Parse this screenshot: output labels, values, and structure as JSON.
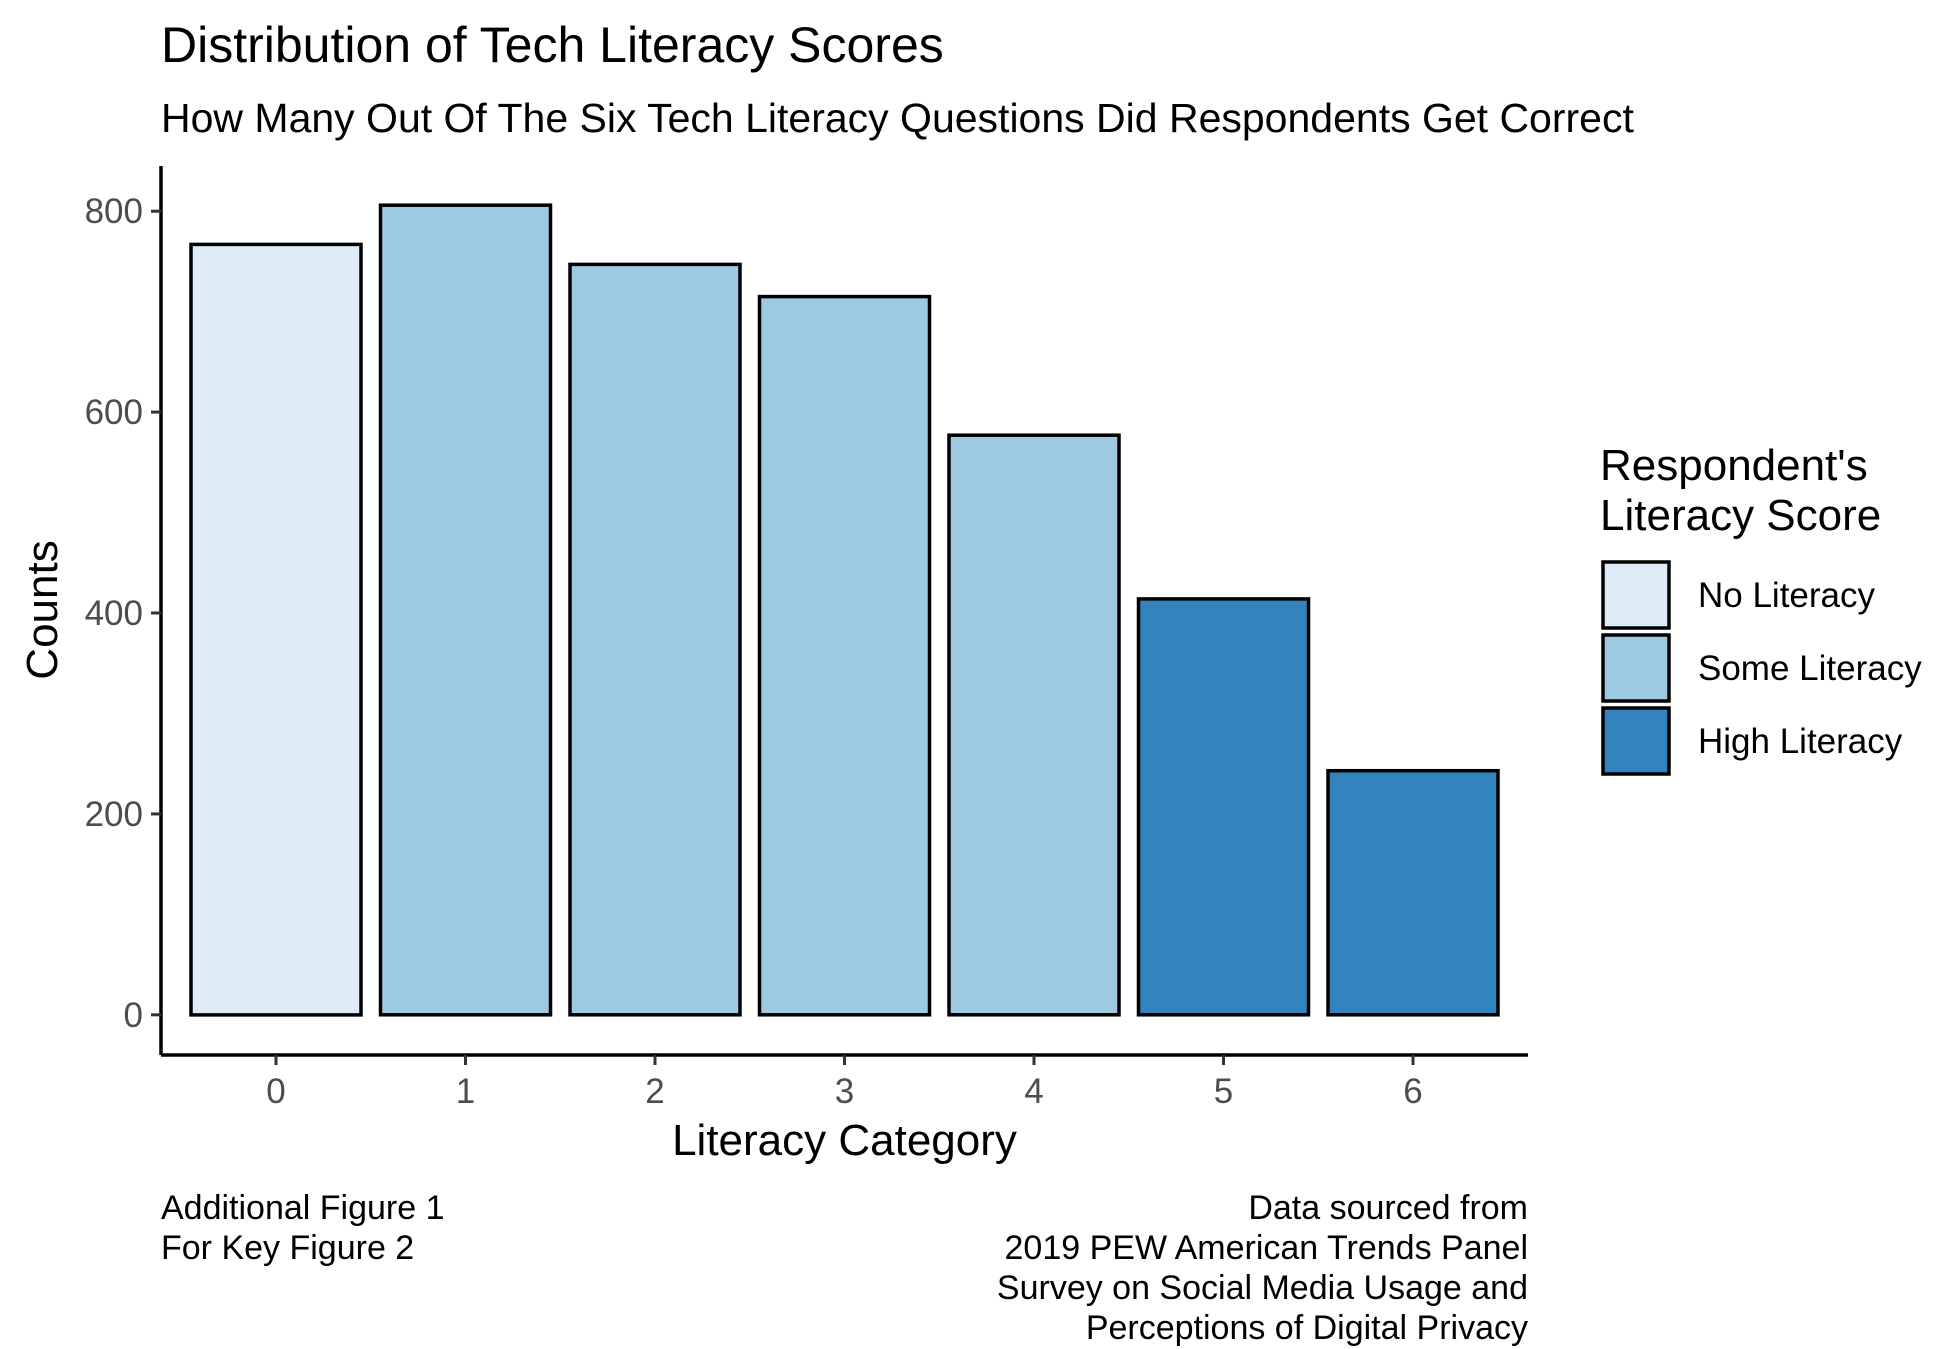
{
  "chart_data": {
    "type": "bar",
    "title": "Distribution of Tech Literacy Scores",
    "subtitle": "How Many Out Of The Six Tech Literacy Questions Did Respondents Get Correct",
    "xlabel": "Literacy Category",
    "ylabel": "Counts",
    "categories": [
      "0",
      "1",
      "2",
      "3",
      "4",
      "5",
      "6"
    ],
    "values": [
      767,
      806,
      747,
      715,
      577,
      414,
      243
    ],
    "groups": [
      "No Literacy",
      "Some Literacy",
      "Some Literacy",
      "Some Literacy",
      "Some Literacy",
      "High Literacy",
      "High Literacy"
    ],
    "y_ticks": [
      0,
      200,
      400,
      600,
      800
    ],
    "ylim": [
      -40,
      845
    ],
    "grid": false,
    "legend": {
      "title_line1": "Respondent's",
      "title_line2": "Literacy Score",
      "position": "right",
      "entries": [
        {
          "label": "No Literacy",
          "color": "#DEEBF7"
        },
        {
          "label": "Some Literacy",
          "color": "#9ECAE1"
        },
        {
          "label": "High Literacy",
          "color": "#3182BD"
        }
      ]
    },
    "caption_left": [
      "Additional Figure 1",
      "For Key Figure 2"
    ],
    "caption_right": [
      "Data sourced from",
      "2019 PEW American Trends Panel",
      "Survey on Social Media Usage and",
      "Perceptions of Digital Privacy"
    ]
  }
}
